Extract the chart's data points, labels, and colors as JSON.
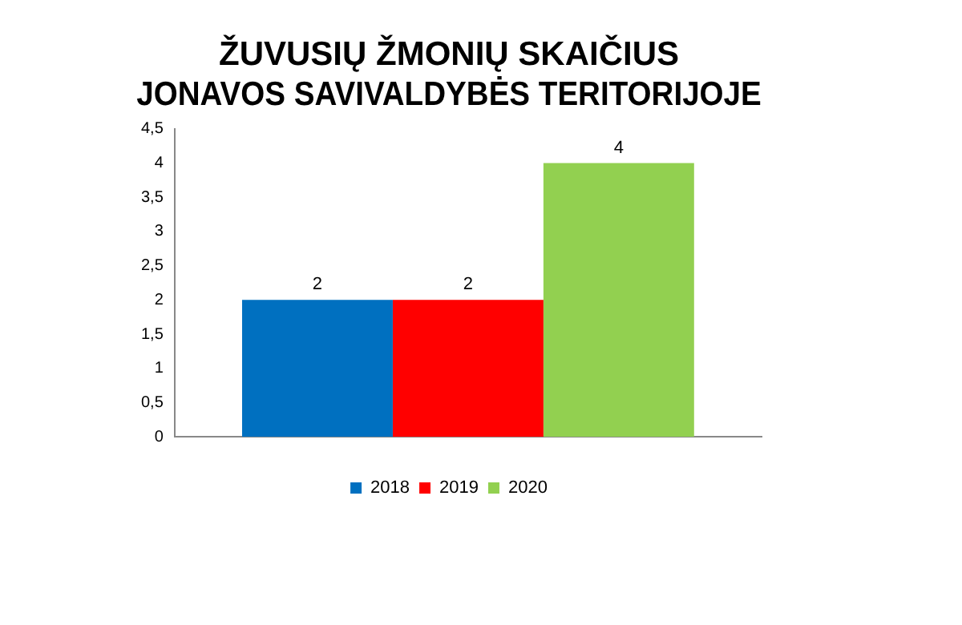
{
  "chart_data": {
    "type": "bar",
    "title": "ŽUVUSIŲ ŽMONIŲ SKAIČIUS\nJONAVOS SAVIVALDYBĖS TERITORIJOJE",
    "categories": [
      null
    ],
    "series": [
      {
        "name": "2018",
        "color": "#0070c0",
        "values": [
          2
        ]
      },
      {
        "name": "2019",
        "color": "#ff0000",
        "values": [
          2
        ]
      },
      {
        "name": "2020",
        "color": "#92d050",
        "values": [
          4
        ]
      }
    ],
    "ylim": [
      0,
      4.5
    ],
    "yticks": [
      0,
      {
        "value": 0.5,
        "label": "0,5"
      },
      1,
      {
        "value": 1.5,
        "label": "1,5"
      },
      2,
      {
        "value": 2.5,
        "label": "2,5"
      },
      3,
      {
        "value": 3.5,
        "label": "3,5"
      },
      4,
      {
        "value": 4.5,
        "label": "4,5"
      }
    ],
    "grid": false,
    "legend": "bottom",
    "data_labels": true
  }
}
